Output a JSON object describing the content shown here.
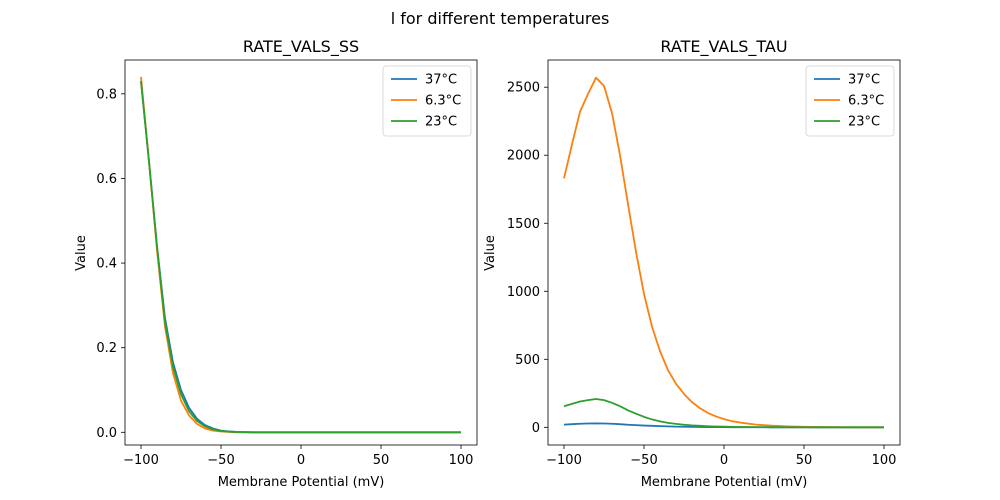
{
  "figure": {
    "suptitle": "l for different temperatures"
  },
  "chart_data": [
    {
      "type": "line",
      "title": "RATE_VALS_SS",
      "xlabel": "Membrane Potential (mV)",
      "ylabel": "Value",
      "xlim": [
        -110,
        110
      ],
      "ylim": [
        -0.03,
        0.88
      ],
      "xticks": [
        -100,
        -50,
        0,
        50,
        100
      ],
      "yticks": [
        0.0,
        0.2,
        0.4,
        0.6,
        0.8
      ],
      "xtick_labels": [
        "−100",
        "−50",
        "0",
        "50",
        "100"
      ],
      "ytick_labels": [
        "0.0",
        "0.2",
        "0.4",
        "0.6",
        "0.8"
      ],
      "legend_position": "top-right",
      "grid": false,
      "x": [
        -100,
        -95,
        -90,
        -85,
        -80,
        -75,
        -70,
        -65,
        -60,
        -55,
        -50,
        -45,
        -40,
        -30,
        -20,
        0,
        50,
        100
      ],
      "series": [
        {
          "name": "37°C",
          "color": "#1f77b4",
          "values": [
            0.83,
            0.64,
            0.44,
            0.27,
            0.165,
            0.1,
            0.058,
            0.032,
            0.017,
            0.009,
            0.004,
            0.002,
            0.001,
            0.0,
            0.0,
            0.0,
            0.0,
            0.0
          ]
        },
        {
          "name": "6.3°C",
          "color": "#ff7f0e",
          "values": [
            0.84,
            0.64,
            0.43,
            0.25,
            0.14,
            0.075,
            0.04,
            0.02,
            0.009,
            0.004,
            0.002,
            0.001,
            0.0,
            0.0,
            0.0,
            0.0,
            0.0,
            0.0
          ]
        },
        {
          "name": "23°C",
          "color": "#2ca02c",
          "values": [
            0.83,
            0.64,
            0.44,
            0.26,
            0.155,
            0.09,
            0.05,
            0.027,
            0.014,
            0.007,
            0.003,
            0.0015,
            0.0008,
            0.0,
            0.0,
            0.0,
            0.0,
            0.0
          ]
        }
      ]
    },
    {
      "type": "line",
      "title": "RATE_VALS_TAU",
      "xlabel": "Membrane Potential (mV)",
      "ylabel": "Value",
      "xlim": [
        -110,
        110
      ],
      "ylim": [
        -130,
        2700
      ],
      "xticks": [
        -100,
        -50,
        0,
        50,
        100
      ],
      "yticks": [
        0,
        500,
        1000,
        1500,
        2000,
        2500
      ],
      "xtick_labels": [
        "−100",
        "−50",
        "0",
        "50",
        "100"
      ],
      "ytick_labels": [
        "0",
        "500",
        "1000",
        "1500",
        "2000",
        "2500"
      ],
      "legend_position": "top-right",
      "grid": false,
      "x": [
        -100,
        -95,
        -90,
        -85,
        -80,
        -75,
        -70,
        -65,
        -60,
        -55,
        -50,
        -45,
        -40,
        -35,
        -30,
        -25,
        -20,
        -15,
        -10,
        -5,
        0,
        5,
        10,
        20,
        30,
        40,
        50,
        60,
        70,
        80,
        90,
        100
      ],
      "series": [
        {
          "name": "37°C",
          "color": "#1f77b4",
          "values": [
            20,
            23,
            26,
            28,
            29,
            28,
            26,
            23,
            19,
            16,
            13,
            11,
            9,
            7,
            5,
            4,
            3,
            2.4,
            1.8,
            1.4,
            1.1,
            0.8,
            0.6,
            0.4,
            0.2,
            0.1,
            0.05,
            0,
            0,
            0,
            0,
            0
          ]
        },
        {
          "name": "6.3°C",
          "color": "#ff7f0e",
          "values": [
            1830,
            2080,
            2320,
            2450,
            2570,
            2510,
            2310,
            2000,
            1640,
            1290,
            980,
            740,
            560,
            420,
            320,
            245,
            185,
            140,
            105,
            80,
            60,
            45,
            35,
            20,
            12,
            7,
            4,
            2,
            1,
            0.5,
            0.2,
            0.1
          ]
        },
        {
          "name": "23°C",
          "color": "#2ca02c",
          "values": [
            155,
            172,
            190,
            200,
            208,
            200,
            180,
            155,
            125,
            100,
            77,
            58,
            44,
            33,
            25,
            19,
            14,
            11,
            8,
            6,
            4.5,
            3.4,
            2.5,
            1.4,
            0.8,
            0.45,
            0.25,
            0.1,
            0.05,
            0,
            0,
            0
          ]
        }
      ]
    }
  ]
}
